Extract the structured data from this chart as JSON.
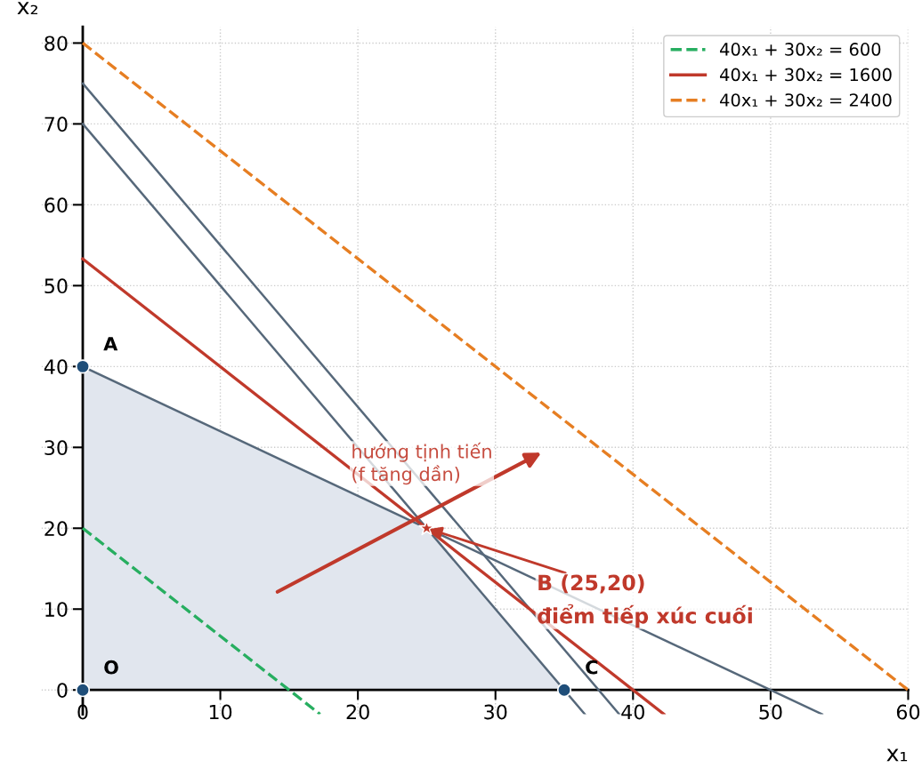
{
  "chart_data": {
    "type": "line",
    "xlabel": "x₁",
    "ylabel": "x₂",
    "xlim": [
      -3,
      60
    ],
    "ylim": [
      -3,
      82
    ],
    "xticks": [
      0,
      10,
      20,
      30,
      40,
      50,
      60
    ],
    "yticks": [
      0,
      10,
      20,
      30,
      40,
      50,
      60,
      70,
      80
    ],
    "grid": true,
    "legend": "top right",
    "series": [
      {
        "type": "area",
        "color": "#e1e6ee",
        "x": [
          0,
          0,
          25,
          35
        ],
        "values": [
          0,
          40,
          20,
          0
        ]
      },
      {
        "color": "#56687a",
        "line_style": "solid",
        "x": [
          0,
          53.75
        ],
        "values": [
          40,
          -3
        ]
      },
      {
        "color": "#56687a",
        "line_style": "solid",
        "x": [
          0,
          36.5
        ],
        "values": [
          70,
          -3
        ]
      },
      {
        "color": "#56687a",
        "line_style": "solid",
        "x": [
          0,
          39
        ],
        "values": [
          75,
          -3
        ]
      },
      {
        "name": "40x₁ + 30x₂ = 600",
        "color": "#27ae60",
        "line_style": "dashed",
        "x": [
          0,
          17.25
        ],
        "values": [
          20,
          -3
        ]
      },
      {
        "name": "40x₁ + 30x₂ = 1600",
        "color": "#c0392b",
        "line_style": "solid",
        "x": [
          0,
          42.25
        ],
        "values": [
          53.3,
          -3
        ]
      },
      {
        "name": "40x₁ + 30x₂ = 2400",
        "color": "#e67e22",
        "line_style": "dashed",
        "x": [
          0,
          60
        ],
        "values": [
          80,
          0
        ]
      },
      {
        "type": "scatter",
        "color": "#1f4e79",
        "marker": "circle",
        "x": [
          0,
          0,
          35
        ],
        "values": [
          0,
          40,
          0
        ]
      },
      {
        "type": "scatter",
        "color": "#c0392b",
        "marker": "star",
        "x": [
          25
        ],
        "values": [
          20
        ]
      }
    ],
    "annotations": [
      {
        "text": "O",
        "x": 0,
        "y": 0
      },
      {
        "text": "A",
        "x": 0,
        "y": 40
      },
      {
        "text": "C",
        "x": 35,
        "y": 0
      },
      {
        "text": "B (25,20)\nđiểm tiếp xúc cuối",
        "x": 25,
        "y": 20
      },
      "hướng tịnh tiến\n(f tăng dần)"
    ]
  }
}
